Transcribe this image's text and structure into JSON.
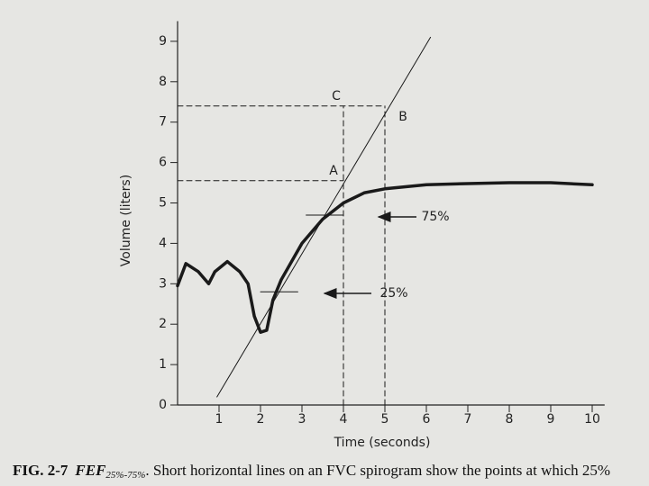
{
  "chart_data": {
    "type": "line",
    "x_label": "Time (seconds)",
    "y_label": "Volume (liters)",
    "xlim": [
      0,
      10.3
    ],
    "ylim": [
      0,
      9.5
    ],
    "xticks": [
      1,
      2,
      3,
      4,
      5,
      6,
      7,
      8,
      9,
      10
    ],
    "yticks": [
      0,
      1,
      2,
      3,
      4,
      5,
      6,
      7,
      8,
      9
    ],
    "series": [
      {
        "color": "#1a1a1a",
        "width": 3.5,
        "dash": false,
        "x": [
          0,
          0.2,
          0.5,
          0.75,
          0.9,
          1.2,
          1.5,
          1.7,
          1.85,
          2.0,
          2.15,
          2.3,
          2.5,
          3.0,
          3.5,
          4.0,
          4.5,
          5.0,
          6.0,
          7.0,
          8.0,
          9.0,
          10.0
        ],
        "values": [
          2.95,
          3.5,
          3.3,
          3.0,
          3.3,
          3.55,
          3.3,
          3.0,
          2.2,
          1.8,
          1.85,
          2.6,
          3.1,
          4.0,
          4.6,
          5.0,
          5.25,
          5.35,
          5.45,
          5.48,
          5.5,
          5.5,
          5.45
        ]
      },
      {
        "color": "#1a1a1a",
        "width": 1,
        "dash": false,
        "x": [
          0.95,
          6.1
        ],
        "values": [
          0.2,
          9.1
        ]
      },
      {
        "color": "#1a1a1a",
        "width": 1,
        "dash": true,
        "x": [
          0,
          5
        ],
        "values": [
          7.4,
          7.4
        ]
      },
      {
        "color": "#1a1a1a",
        "width": 1,
        "dash": true,
        "x": [
          0,
          4
        ],
        "values": [
          5.55,
          5.55
        ]
      },
      {
        "color": "#1a1a1a",
        "width": 1,
        "dash": true,
        "x": [
          4,
          4
        ],
        "values": [
          0,
          7.4
        ]
      },
      {
        "color": "#1a1a1a",
        "width": 1,
        "dash": true,
        "x": [
          5,
          5
        ],
        "values": [
          0,
          7.4
        ]
      },
      {
        "color": "#1a1a1a",
        "width": 1,
        "dash": false,
        "x": [
          3.1,
          4.0
        ],
        "values": [
          4.7,
          4.7
        ]
      },
      {
        "color": "#1a1a1a",
        "width": 1,
        "dash": false,
        "x": [
          2.0,
          2.9
        ],
        "values": [
          2.8,
          2.8
        ]
      }
    ],
    "annotations": [
      "A",
      "B",
      "C",
      "75%",
      "25%"
    ],
    "caption": {
      "label": "FIG. 2-7",
      "term": "FEF",
      "subscript": "25%-75%",
      "text": ". Short horizontal lines on an FVC spirogram show the points at which 25%"
    }
  }
}
